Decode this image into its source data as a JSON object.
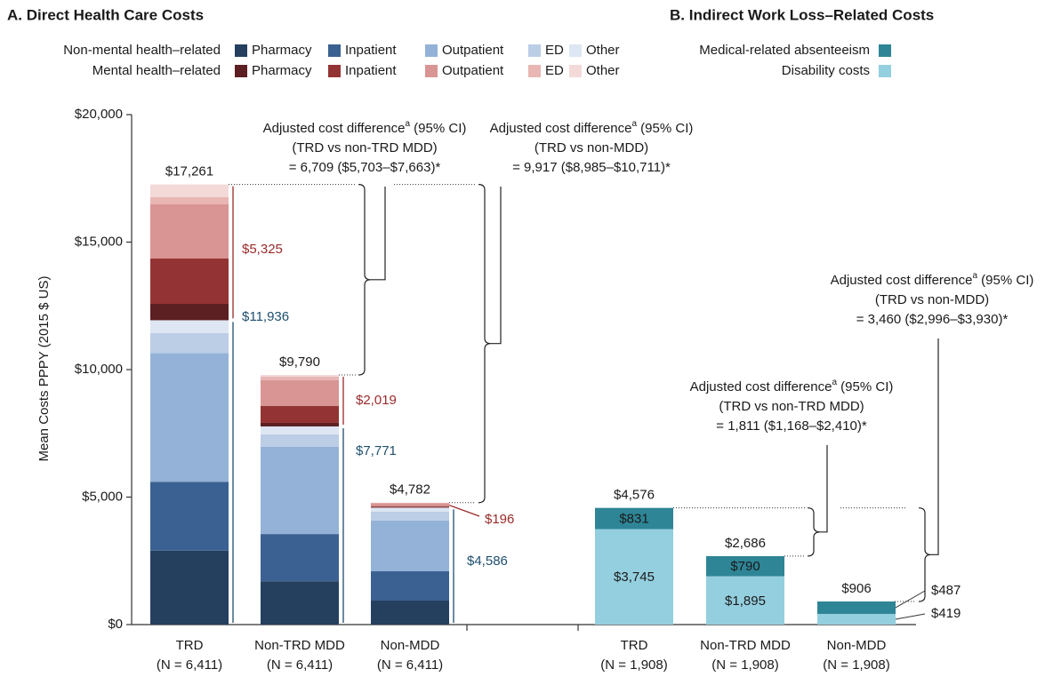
{
  "chart_data": [
    {
      "type": "stacked_bar",
      "title": "A. Direct Health Care Costs",
      "y_label": "Mean Costs PPPY (2015 $ US)",
      "ylim": [
        0,
        20000
      ],
      "yticks": [
        {
          "value": 0,
          "label": "$0"
        },
        {
          "value": 5000,
          "label": "$5,000"
        },
        {
          "value": 10000,
          "label": "$10,000"
        },
        {
          "value": 15000,
          "label": "$15,000"
        },
        {
          "value": 20000,
          "label": "$20,000"
        }
      ],
      "categories": [
        "TRD",
        "Non-TRD MDD",
        "Non-MDD"
      ],
      "category_notes": [
        "(N = 6,411)",
        "(N = 6,411)",
        "(N = 6,411)"
      ],
      "series_groups": [
        {
          "name": "Non-mental health–related",
          "label_color": "#1e4f6e",
          "totals": [
            11936,
            7771,
            4586
          ],
          "total_labels": [
            "$11,936",
            "$7,771",
            "$4,586"
          ],
          "series": [
            {
              "name": "Pharmacy",
              "color": "#253f5e",
              "values": [
                2900,
                1700,
                940
              ]
            },
            {
              "name": "Inpatient",
              "color": "#3a6191",
              "values": [
                2700,
                1850,
                1150
              ]
            },
            {
              "name": "Outpatient",
              "color": "#94b2d7",
              "values": [
                5050,
                3420,
                1990
              ]
            },
            {
              "name": "ED",
              "color": "#bccde6",
              "values": [
                780,
                490,
                345
              ]
            },
            {
              "name": "Other",
              "color": "#dde6f2",
              "values": [
                506,
                311,
                161
              ]
            }
          ]
        },
        {
          "name": "Mental health–related",
          "label_color": "#9a2a2a",
          "totals": [
            5325,
            2019,
            196
          ],
          "total_labels": [
            "$5,325",
            "$2,019",
            "$196"
          ],
          "series": [
            {
              "name": "Pharmacy",
              "color": "#5c1f22",
              "values": [
                642,
                140,
                20
              ]
            },
            {
              "name": "Inpatient",
              "color": "#943333",
              "values": [
                1777,
                660,
                40
              ]
            },
            {
              "name": "Outpatient",
              "color": "#d99593",
              "values": [
                2126,
                1010,
                110
              ]
            },
            {
              "name": "ED",
              "color": "#e9b6b4",
              "values": [
                279,
                140,
                16
              ]
            },
            {
              "name": "Other",
              "color": "#f3dad9",
              "values": [
                501,
                69,
                10
              ]
            }
          ]
        }
      ],
      "totals": [
        17261,
        9790,
        4782
      ],
      "total_labels": [
        "$17,261",
        "$9,790",
        "$4,782"
      ],
      "annotations": [
        {
          "head": "Adjusted cost difference",
          "sup": "a",
          "tail": " (95% CI)",
          "lines": [
            "(TRD vs non-TRD MDD)",
            "= 6,709 ($5,703–$7,663)*"
          ]
        },
        {
          "head": "Adjusted cost difference",
          "sup": "a",
          "tail": " (95% CI)",
          "lines": [
            "(TRD vs non-MDD)",
            "= 9,917 ($8,985–$10,711)*"
          ]
        }
      ]
    },
    {
      "type": "stacked_bar",
      "title": "B. Indirect Work Loss–Related Costs",
      "ylim": [
        0,
        20000
      ],
      "categories": [
        "TRD",
        "Non-TRD MDD",
        "Non-MDD"
      ],
      "category_notes": [
        "(N = 1,908)",
        "(N = 1,908)",
        "(N = 1,908)"
      ],
      "series": [
        {
          "name": "Disability costs",
          "color": "#94cfdf",
          "values": [
            3745,
            1895,
            419
          ],
          "value_labels": [
            "$3,745",
            "$1,895",
            "$419"
          ]
        },
        {
          "name": "Medical-related absenteeism",
          "color": "#2e8596",
          "values": [
            831,
            790,
            487
          ],
          "value_labels": [
            "$831",
            "$790",
            "$487"
          ]
        }
      ],
      "totals": [
        4576,
        2686,
        906
      ],
      "total_labels": [
        "$4,576",
        "$2,686",
        "$906"
      ],
      "annotations": [
        {
          "head": "Adjusted cost difference",
          "sup": "a",
          "tail": " (95% CI)",
          "lines": [
            "(TRD vs non-TRD MDD)",
            "= 1,811 ($1,168–$2,410)*"
          ]
        },
        {
          "head": "Adjusted cost difference",
          "sup": "a",
          "tail": " (95% CI)",
          "lines": [
            "(TRD vs non-MDD)",
            "= 3,460 ($2,996–$3,930)*"
          ]
        }
      ]
    }
  ]
}
